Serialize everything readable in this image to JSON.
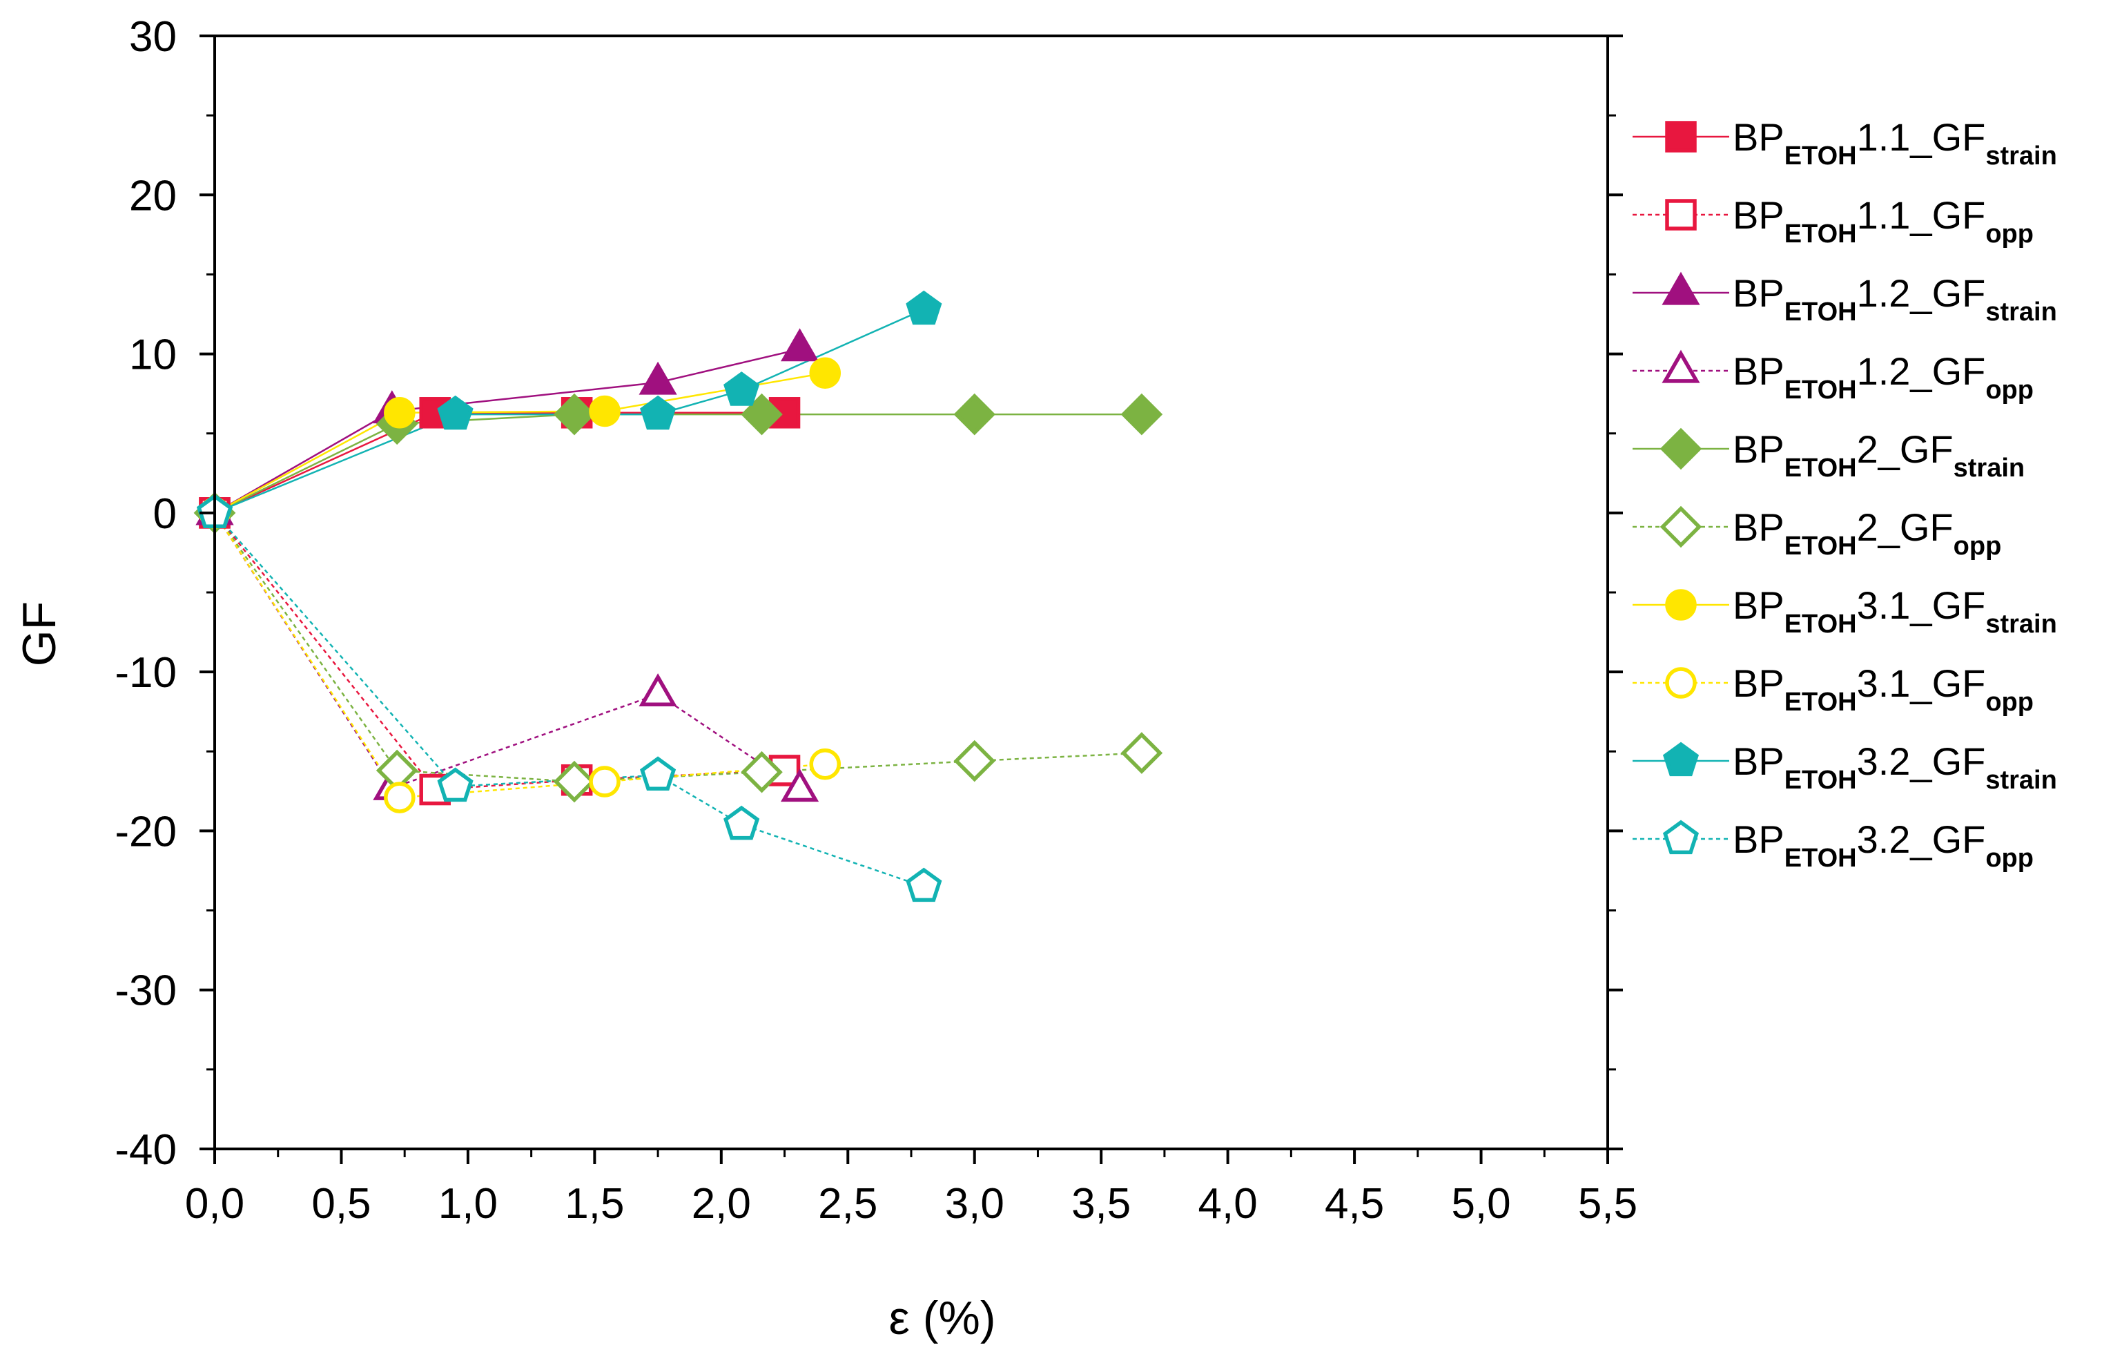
{
  "chart_data": {
    "type": "line",
    "title": "",
    "xlabel": "ε (%)",
    "ylabel": "GF",
    "xlim": [
      0,
      5.5
    ],
    "ylim": [
      -40,
      30
    ],
    "xticks": [
      0,
      0.5,
      1.0,
      1.5,
      2.0,
      2.5,
      3.0,
      3.5,
      4.0,
      4.5,
      5.0,
      5.5
    ],
    "xtick_labels": [
      "0,0",
      "0,5",
      "1,0",
      "1,5",
      "2,0",
      "2,5",
      "3,0",
      "3,5",
      "4,0",
      "4,5",
      "5,0",
      "5,5"
    ],
    "yticks": [
      30,
      20,
      10,
      0,
      -10,
      -20,
      -30,
      -40
    ],
    "ytick_labels": [
      "30",
      "20",
      "10",
      "0",
      "-10",
      "-20",
      "-30",
      "-40"
    ],
    "grid": false,
    "legend_position": "right",
    "series": [
      {
        "name": "BP_ETOH1.1_GF_strain",
        "label_main": "BP",
        "label_sub1": "ETOH",
        "label_mid": "1.1_GF",
        "label_sub2": "strain",
        "color": "#e8173f",
        "marker": "square",
        "filled": true,
        "dashed": false,
        "x": [
          0,
          0.87,
          1.43,
          2.25
        ],
        "y": [
          0,
          6.3,
          6.3,
          6.3
        ]
      },
      {
        "name": "BP_ETOH1.1_GF_opp",
        "label_main": "BP",
        "label_sub1": "ETOH",
        "label_mid": "1.1_GF",
        "label_sub2": "opp",
        "color": "#e8173f",
        "marker": "square",
        "filled": false,
        "dashed": true,
        "x": [
          0,
          0.87,
          1.43,
          2.25
        ],
        "y": [
          0,
          -17.4,
          -16.8,
          -16.2
        ]
      },
      {
        "name": "BP_ETOH1.2_GF_strain",
        "label_main": "BP",
        "label_sub1": "ETOH",
        "label_mid": "1.2_GF",
        "label_sub2": "strain",
        "color": "#a0107f",
        "marker": "triangle",
        "filled": true,
        "dashed": false,
        "x": [
          0,
          0.7,
          1.75,
          2.31
        ],
        "y": [
          0,
          6.4,
          8.2,
          10.3
        ]
      },
      {
        "name": "BP_ETOH1.2_GF_opp",
        "label_main": "BP",
        "label_sub1": "ETOH",
        "label_mid": "1.2_GF",
        "label_sub2": "opp",
        "color": "#a0107f",
        "marker": "triangle",
        "filled": false,
        "dashed": true,
        "x": [
          0,
          0.7,
          1.75,
          2.31
        ],
        "y": [
          0,
          -17.3,
          -11.4,
          -17.4
        ]
      },
      {
        "name": "BP_ETOH2_GF_strain",
        "label_main": "BP",
        "label_sub1": "ETOH",
        "label_mid": "2_GF",
        "label_sub2": "strain",
        "color": "#7cb342",
        "marker": "diamond",
        "filled": true,
        "dashed": false,
        "x": [
          0,
          0.72,
          1.42,
          2.16,
          3.0,
          3.66
        ],
        "y": [
          0,
          5.6,
          6.2,
          6.2,
          6.2,
          6.2
        ]
      },
      {
        "name": "BP_ETOH2_GF_opp",
        "label_main": "BP",
        "label_sub1": "ETOH",
        "label_mid": "2_GF",
        "label_sub2": "opp",
        "color": "#7cb342",
        "marker": "diamond",
        "filled": false,
        "dashed": true,
        "x": [
          0,
          0.72,
          1.42,
          2.16,
          3.0,
          3.66
        ],
        "y": [
          0,
          -16.2,
          -16.9,
          -16.3,
          -15.6,
          -15.1
        ]
      },
      {
        "name": "BP_ETOH3.1_GF_strain",
        "label_main": "BP",
        "label_sub1": "ETOH",
        "label_mid": "3.1_GF",
        "label_sub2": "strain",
        "color": "#ffe600",
        "marker": "circle",
        "filled": true,
        "dashed": false,
        "x": [
          0,
          0.73,
          1.54,
          2.41
        ],
        "y": [
          0,
          6.3,
          6.4,
          8.8
        ]
      },
      {
        "name": "BP_ETOH3.1_GF_opp",
        "label_main": "BP",
        "label_sub1": "ETOH",
        "label_mid": "3.1_GF",
        "label_sub2": "opp",
        "color": "#ffe600",
        "marker": "circle",
        "filled": false,
        "dashed": true,
        "x": [
          0,
          0.73,
          1.54,
          2.41
        ],
        "y": [
          0,
          -17.9,
          -16.9,
          -15.8
        ]
      },
      {
        "name": "BP_ETOH3.2_GF_strain",
        "label_main": "BP",
        "label_sub1": "ETOH",
        "label_mid": "3.2_GF",
        "label_sub2": "strain",
        "color": "#12b3b3",
        "marker": "pentagon",
        "filled": true,
        "dashed": false,
        "x": [
          0,
          0.95,
          1.75,
          2.08,
          2.8
        ],
        "y": [
          0,
          6.2,
          6.2,
          7.7,
          12.8
        ]
      },
      {
        "name": "BP_ETOH3.2_GF_opp",
        "label_main": "BP",
        "label_sub1": "ETOH",
        "label_mid": "3.2_GF",
        "label_sub2": "opp",
        "color": "#12b3b3",
        "marker": "pentagon",
        "filled": false,
        "dashed": true,
        "x": [
          0,
          0.95,
          1.75,
          2.08,
          2.8
        ],
        "y": [
          0,
          -17.2,
          -16.5,
          -19.6,
          -23.5
        ]
      }
    ]
  }
}
